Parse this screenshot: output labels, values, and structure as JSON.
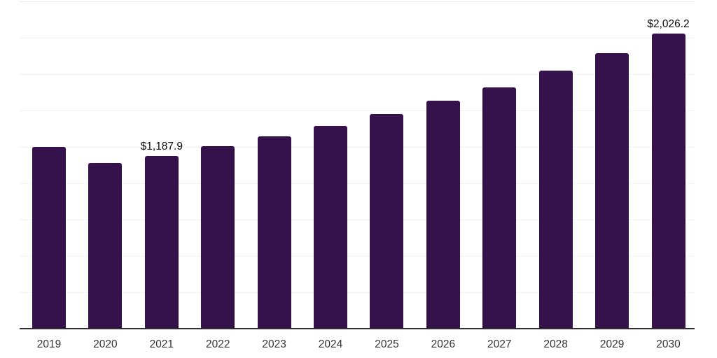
{
  "chart_data": {
    "type": "bar",
    "categories": [
      "2019",
      "2020",
      "2021",
      "2022",
      "2023",
      "2024",
      "2025",
      "2026",
      "2027",
      "2028",
      "2029",
      "2030"
    ],
    "values": [
      1250,
      1140,
      1187.9,
      1255,
      1321,
      1393,
      1474,
      1564,
      1659,
      1774,
      1893,
      2026.2
    ],
    "point_labels": [
      {
        "category": "2021",
        "text": "$1,187.9"
      },
      {
        "category": "2030",
        "text": "$2,026.2"
      }
    ],
    "ylim": [
      0,
      2250
    ],
    "gridline_interval": 250,
    "grid": true,
    "legend": false,
    "bar_color": "#35124B",
    "axis_line_color": "#2f2f33"
  }
}
